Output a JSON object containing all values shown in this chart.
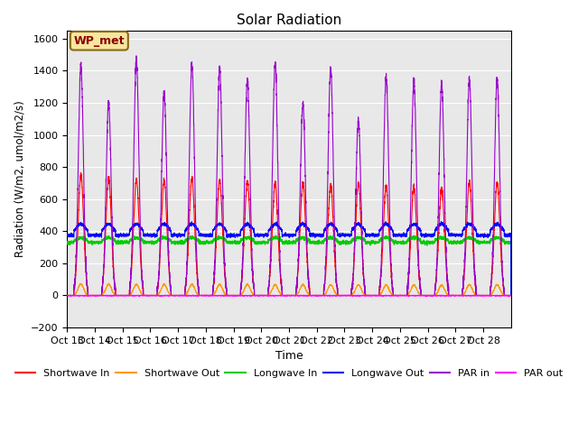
{
  "title": "Solar Radiation",
  "xlabel": "Time",
  "ylabel": "Radiation (W/m2, umol/m2/s)",
  "ylim": [
    -200,
    1650
  ],
  "yticks": [
    -200,
    0,
    200,
    400,
    600,
    800,
    1000,
    1200,
    1400,
    1600
  ],
  "n_days": 16,
  "pts_per_day": 288,
  "plot_bg_color": "#e8e8e8",
  "grid_color": "#ffffff",
  "annotation_box_color": "#f5e6a0",
  "annotation_box_edge": "#8B6914",
  "annotation_text": "WP_met",
  "series": {
    "shortwave_in": {
      "color": "#ff0000",
      "label": "Shortwave In"
    },
    "shortwave_out": {
      "color": "#ff9900",
      "label": "Shortwave Out"
    },
    "longwave_in": {
      "color": "#00cc00",
      "label": "Longwave In"
    },
    "longwave_out": {
      "color": "#0000ff",
      "label": "Longwave Out"
    },
    "par_in": {
      "color": "#9900cc",
      "label": "PAR in"
    },
    "par_out": {
      "color": "#ff00ff",
      "label": "PAR out"
    }
  },
  "sw_in_peaks": [
    750,
    730,
    720,
    720,
    730,
    720,
    710,
    700,
    700,
    690,
    700,
    680,
    680,
    670,
    710,
    700
  ],
  "par_in_peaks": [
    1440,
    1200,
    1470,
    1260,
    1440,
    1410,
    1350,
    1450,
    1200,
    1420,
    1090,
    1360,
    1330,
    1320,
    1350,
    1350
  ],
  "xtick_labels": [
    "Oct 13",
    "Oct 14",
    "Oct 15",
    "Oct 16",
    "Oct 17",
    "Oct 18",
    "Oct 19",
    "Oct 20",
    "Oct 21",
    "Oct 22",
    "Oct 23",
    "Oct 24",
    "Oct 25",
    "Oct 26",
    "Oct 27",
    "Oct 28"
  ]
}
